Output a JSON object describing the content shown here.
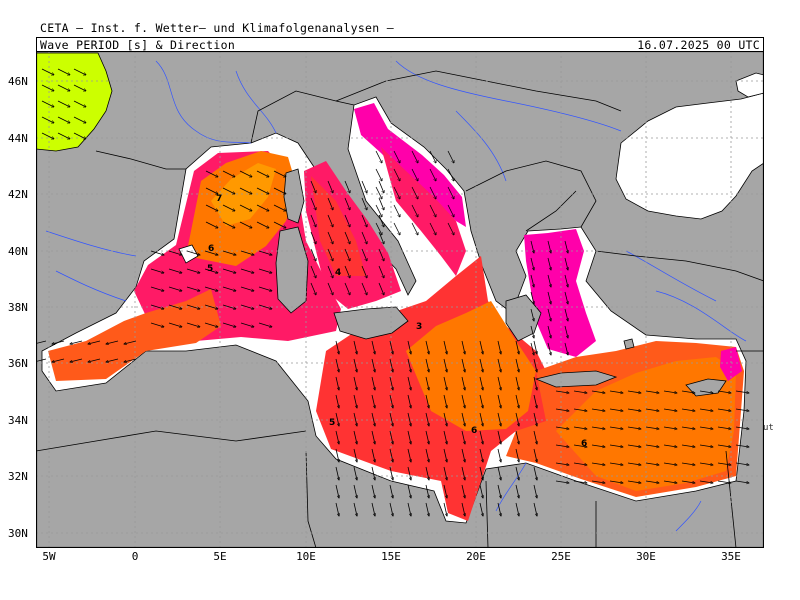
{
  "header": {
    "institute": "CETA — Inst. f. Wetter— und Klimafolgenanalysen —",
    "product": "Wave_PERIOD_[s]_&_Direction",
    "valid_time": "16.07.2025 00 UTC"
  },
  "axes": {
    "lat_labels": [
      "46N",
      "44N",
      "42N",
      "40N",
      "38N",
      "36N",
      "34N",
      "32N",
      "30N"
    ],
    "lon_labels": [
      "5W",
      "0",
      "5E",
      "10E",
      "15E",
      "20E",
      "25E",
      "30E",
      "35E"
    ]
  },
  "contour_labels": [
    "7",
    "6",
    "5",
    "4",
    "3",
    "6",
    "6",
    "5"
  ],
  "edge_text": "ut",
  "colors": {
    "land": "#a6a6a6",
    "water_outside": "#ffffff",
    "period_lt_3": "#ff00aa",
    "period_3_4": "#ff1a66",
    "period_4_5": "#ff3333",
    "period_5_6": "#ff5a1a",
    "period_6_7": "#ff7700",
    "period_7_8": "#ff9900",
    "period_gt_8": "#ccff00",
    "rivers": "#3355ff",
    "borders": "#000000"
  }
}
